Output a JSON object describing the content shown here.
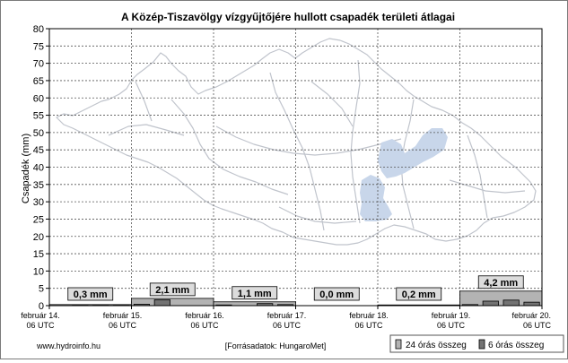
{
  "chart_data": {
    "type": "bar",
    "title": "A Közép-Tiszavölgy vízgyűjtőjére hullott csapadék területi átlagai",
    "ylabel": "Csapadék (mm)",
    "xlabel": "",
    "ylim": [
      0,
      80
    ],
    "yticks": [
      0,
      5,
      10,
      15,
      20,
      25,
      30,
      35,
      40,
      45,
      50,
      55,
      60,
      65,
      70,
      75,
      80
    ],
    "grid": true,
    "xticks": [
      {
        "date": "február 14.",
        "time": "06 UTC"
      },
      {
        "date": "február 15.",
        "time": "06 UTC"
      },
      {
        "date": "február 16.",
        "time": "06 UTC"
      },
      {
        "date": "február 17.",
        "time": "06 UTC"
      },
      {
        "date": "február 18.",
        "time": "06 UTC"
      },
      {
        "date": "február 19.",
        "time": "06 UTC"
      },
      {
        "date": "február 20.",
        "time": "06 UTC"
      }
    ],
    "series": [
      {
        "name": "24 órás összeg",
        "color": "#b3b3b3",
        "values": [
          0.3,
          2.1,
          1.1,
          0.0,
          0.2,
          4.2
        ]
      },
      {
        "name": "6 órás összeg",
        "color": "#737373",
        "values": [
          0.0,
          0.1,
          0.1,
          0.1,
          0.4,
          1.7,
          0.0,
          0.0,
          0.2,
          0.0,
          0.6,
          0.3,
          0.0,
          0.0,
          0.0,
          0.0,
          0.0,
          0.1,
          0.1,
          0.0,
          0.3,
          1.3,
          1.6,
          1.0
        ]
      }
    ],
    "data_labels": [
      "0,3 mm",
      "2,1 mm",
      "1,1 mm",
      "0,0 mm",
      "0,2 mm",
      "4,2 mm"
    ],
    "legend_position": "bottom-right"
  },
  "footer": {
    "website": "www.hydroinfo.hu",
    "source": "[Forrásadatok: HungaroMet]"
  },
  "colors": {
    "map_outline": "#c0c4cc",
    "lake_fill": "#c8d6ea",
    "label_box": "#dcdcdc"
  }
}
